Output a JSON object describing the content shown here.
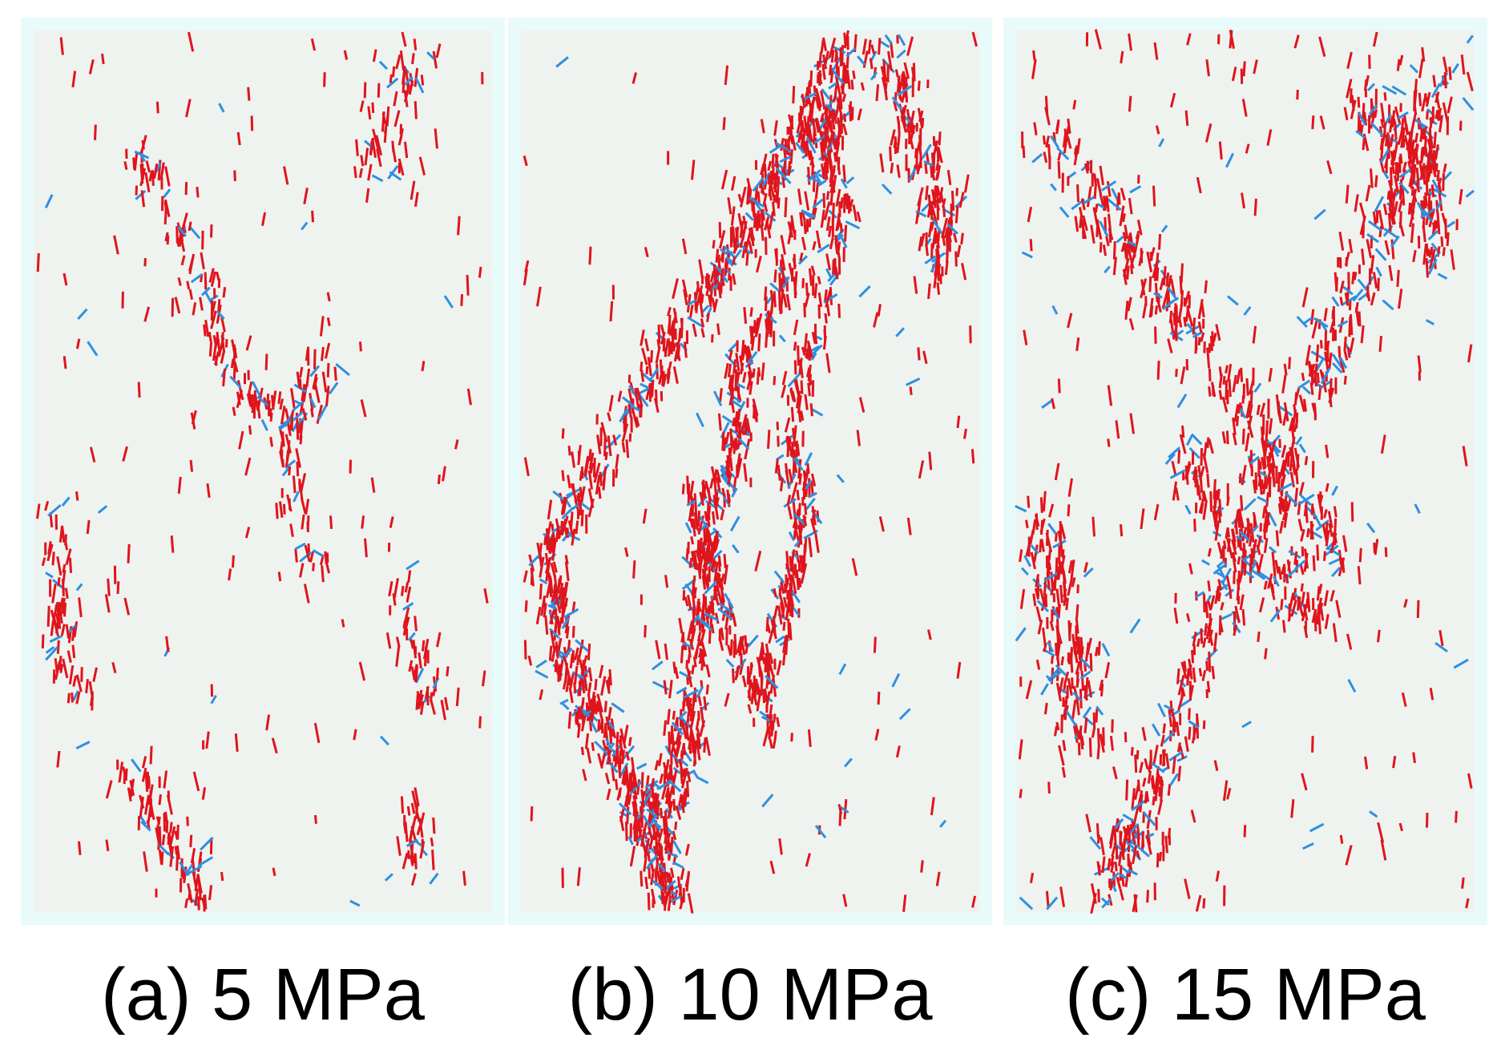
{
  "colors": {
    "background": "#ffffff",
    "panel_border": "#e9fafb",
    "specimen": "#eef3f0",
    "tensile_crack": "#e0141c",
    "shear_crack": "#2f8fe0"
  },
  "legend_semantics": {
    "tensile_crack": "red",
    "shear_crack": "blue"
  },
  "panels": [
    {
      "id": "a",
      "caption": "(a) 5 MPa"
    },
    {
      "id": "b",
      "caption": "(b) 10 MPa"
    },
    {
      "id": "c",
      "caption": "(c) 15 MPa"
    }
  ]
}
